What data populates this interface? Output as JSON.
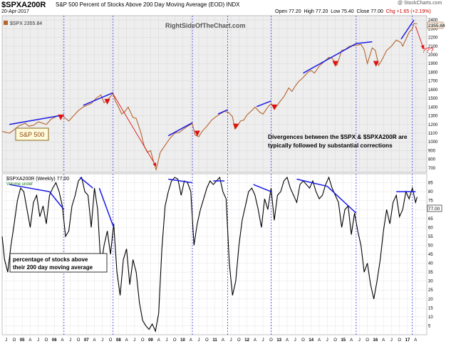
{
  "header": {
    "ticker": "$SPXA200R",
    "description": "S&P 500 Percent of Stocks Above 200 Day Moving Average (EOD) INDX",
    "date": "20-Apr-2017",
    "brand": "@ StockCharts.com",
    "open_label": "Open",
    "open": "77.20",
    "high_label": "High",
    "high": "77.20",
    "low_label": "Low",
    "low": "75.40",
    "close_label": "Close",
    "close": "77.00",
    "change": "Chg +1.65 (+2.19%)"
  },
  "chart_data": [
    {
      "type": "line",
      "panel": "top",
      "legend": "$SPX 2355.84",
      "watermark": "RightSideOfTheChart.com",
      "label_box": "S&P 500",
      "last_value_label": "2355.84",
      "annotation_line1": "Divergences between the $SPX & $SPXA200R are",
      "annotation_line2": "typically followed by substantial corrections",
      "question_marks": "???",
      "ylim": [
        650,
        2450
      ],
      "y_ticks": [
        700,
        800,
        900,
        1000,
        1100,
        1200,
        1300,
        1400,
        1500,
        1600,
        1700,
        1800,
        1900,
        2000,
        2100,
        2200,
        2300,
        2400
      ],
      "xlim": [
        2004.375,
        2017.6
      ],
      "series": [
        {
          "name": "$SPX",
          "color": "#b5652f",
          "x": [
            2004.375,
            2004.5,
            2004.6,
            2004.75,
            2004.9,
            2005.0,
            2005.1,
            2005.2,
            2005.35,
            2005.5,
            2005.6,
            2005.75,
            2005.9,
            2006.0,
            2006.1,
            2006.2,
            2006.35,
            2006.45,
            2006.6,
            2006.75,
            2006.9,
            2007.0,
            2007.15,
            2007.3,
            2007.45,
            2007.55,
            2007.62,
            2007.75,
            2007.83,
            2007.9,
            2008.0,
            2008.1,
            2008.2,
            2008.3,
            2008.45,
            2008.55,
            2008.7,
            2008.8,
            2008.9,
            2009.0,
            2009.1,
            2009.17,
            2009.3,
            2009.45,
            2009.6,
            2009.75,
            2009.9,
            2010.0,
            2010.15,
            2010.3,
            2010.38,
            2010.5,
            2010.6,
            2010.75,
            2010.9,
            2011.0,
            2011.15,
            2011.3,
            2011.42,
            2011.55,
            2011.62,
            2011.7,
            2011.8,
            2011.9,
            2012.0,
            2012.15,
            2012.25,
            2012.4,
            2012.5,
            2012.65,
            2012.75,
            2012.87,
            2013.0,
            2013.15,
            2013.3,
            2013.4,
            2013.5,
            2013.6,
            2013.75,
            2013.9,
            2014.0,
            2014.1,
            2014.25,
            2014.4,
            2014.55,
            2014.65,
            2014.8,
            2014.95,
            2015.05,
            2015.2,
            2015.4,
            2015.55,
            2015.65,
            2015.75,
            2015.9,
            2016.0,
            2016.1,
            2016.2,
            2016.35,
            2016.5,
            2016.65,
            2016.8,
            2016.85,
            2016.95,
            2017.05,
            2017.15,
            2017.2,
            2017.3
          ],
          "values": [
            1120,
            1110,
            1100,
            1140,
            1185,
            1200,
            1215,
            1180,
            1190,
            1230,
            1220,
            1200,
            1260,
            1280,
            1300,
            1310,
            1270,
            1240,
            1300,
            1360,
            1400,
            1420,
            1440,
            1500,
            1540,
            1450,
            1470,
            1520,
            1560,
            1470,
            1400,
            1320,
            1350,
            1400,
            1280,
            1270,
            1100,
            950,
            880,
            900,
            760,
            680,
            880,
            960,
            1040,
            1100,
            1110,
            1140,
            1180,
            1210,
            1080,
            1060,
            1120,
            1180,
            1250,
            1280,
            1320,
            1350,
            1340,
            1290,
            1150,
            1180,
            1240,
            1250,
            1310,
            1360,
            1400,
            1340,
            1320,
            1400,
            1440,
            1380,
            1450,
            1520,
            1620,
            1580,
            1640,
            1690,
            1740,
            1800,
            1820,
            1790,
            1870,
            1920,
            1970,
            1960,
            1880,
            2050,
            2060,
            2100,
            2110,
            2120,
            2060,
            1900,
            2080,
            2050,
            1880,
            1940,
            2050,
            2100,
            2170,
            2140,
            2100,
            2180,
            2260,
            2300,
            2360,
            2355.84
          ]
        }
      ],
      "trendlines": [
        {
          "x": [
            2004.6,
            2006.3
          ],
          "y": [
            1200,
            1310
          ]
        },
        {
          "x": [
            2006.9,
            2007.83
          ],
          "y": [
            1420,
            1565
          ]
        },
        {
          "x": [
            2009.55,
            2010.3
          ],
          "y": [
            1070,
            1220
          ]
        },
        {
          "x": [
            2011.1,
            2011.4
          ],
          "y": [
            1320,
            1370
          ]
        },
        {
          "x": [
            2012.3,
            2012.75
          ],
          "y": [
            1405,
            1470
          ]
        },
        {
          "x": [
            2013.75,
            2015.4
          ],
          "y": [
            1790,
            2130
          ]
        },
        {
          "x": [
            2015.4,
            2015.9
          ],
          "y": [
            2130,
            2150
          ]
        },
        {
          "x": [
            2016.8,
            2017.2
          ],
          "y": [
            2180,
            2400
          ]
        }
      ],
      "vertical_markers": [
        2006.3,
        2007.83,
        2010.3,
        2011.4,
        2012.75,
        2015.4,
        2017.15
      ],
      "down_arrows": [
        {
          "x": 2006.2,
          "y": 1265
        },
        {
          "x": 2007.65,
          "y": 1445
        },
        {
          "x": 2010.45,
          "y": 1080
        },
        {
          "x": 2011.65,
          "y": 1160
        },
        {
          "x": 2012.85,
          "y": 1380
        },
        {
          "x": 2014.75,
          "y": 1880
        },
        {
          "x": 2016.02,
          "y": 1880
        }
      ],
      "crash_path": {
        "x": [
          2007.83,
          2009.17
        ],
        "y": [
          1550,
          720
        ]
      },
      "projection_path": {
        "x": [
          2017.25,
          2017.5
        ],
        "y": [
          2330,
          2070
        ]
      }
    },
    {
      "type": "line",
      "panel": "bottom",
      "legend": "$SPXA200R (Weekly) 77.00",
      "legend_volume": "Volume undef",
      "last_value_label": "77.00",
      "note_line1": "percentage of stocks above",
      "note_line2": "their 200 day moving average",
      "ylim": [
        0,
        90
      ],
      "y_ticks": [
        5,
        10,
        15,
        20,
        25,
        30,
        35,
        40,
        45,
        50,
        55,
        60,
        65,
        70,
        75,
        80,
        85
      ],
      "xlim": [
        2004.375,
        2017.6
      ],
      "x_tick_labels": [
        "J",
        "O",
        "05",
        "A",
        "J",
        "O",
        "06",
        "A",
        "J",
        "O",
        "07",
        "A",
        "J",
        "O",
        "08",
        "A",
        "J",
        "O",
        "09",
        "A",
        "J",
        "O",
        "10",
        "A",
        "J",
        "O",
        "11",
        "A",
        "J",
        "O",
        "12",
        "A",
        "J",
        "O",
        "13",
        "A",
        "J",
        "O",
        "14",
        "A",
        "J",
        "O",
        "15",
        "A",
        "J",
        "O",
        "16",
        "A",
        "J",
        "O",
        "17",
        "A"
      ],
      "series": [
        {
          "name": "$SPXA200R",
          "color": "#000000",
          "x": [
            2004.375,
            2004.45,
            2004.55,
            2004.65,
            2004.75,
            2004.85,
            2004.95,
            2005.05,
            2005.15,
            2005.25,
            2005.35,
            2005.45,
            2005.55,
            2005.65,
            2005.75,
            2005.85,
            2005.95,
            2006.05,
            2006.15,
            2006.25,
            2006.35,
            2006.45,
            2006.55,
            2006.65,
            2006.75,
            2006.85,
            2006.95,
            2007.05,
            2007.15,
            2007.25,
            2007.35,
            2007.45,
            2007.55,
            2007.65,
            2007.75,
            2007.85,
            2007.95,
            2008.05,
            2008.15,
            2008.25,
            2008.35,
            2008.45,
            2008.55,
            2008.65,
            2008.75,
            2008.85,
            2008.95,
            2009.05,
            2009.15,
            2009.25,
            2009.35,
            2009.45,
            2009.55,
            2009.65,
            2009.75,
            2009.85,
            2009.95,
            2010.05,
            2010.15,
            2010.25,
            2010.35,
            2010.45,
            2010.55,
            2010.65,
            2010.75,
            2010.85,
            2010.95,
            2011.05,
            2011.15,
            2011.25,
            2011.35,
            2011.45,
            2011.55,
            2011.65,
            2011.75,
            2011.85,
            2011.95,
            2012.05,
            2012.15,
            2012.25,
            2012.35,
            2012.45,
            2012.55,
            2012.65,
            2012.75,
            2012.85,
            2012.95,
            2013.05,
            2013.15,
            2013.25,
            2013.35,
            2013.45,
            2013.55,
            2013.65,
            2013.75,
            2013.85,
            2013.95,
            2014.05,
            2014.15,
            2014.25,
            2014.35,
            2014.45,
            2014.55,
            2014.65,
            2014.75,
            2014.85,
            2014.95,
            2015.05,
            2015.15,
            2015.25,
            2015.35,
            2015.45,
            2015.55,
            2015.65,
            2015.75,
            2015.85,
            2015.95,
            2016.05,
            2016.15,
            2016.25,
            2016.35,
            2016.45,
            2016.55,
            2016.65,
            2016.75,
            2016.85,
            2016.95,
            2017.05,
            2017.15,
            2017.25,
            2017.3
          ],
          "values": [
            55,
            42,
            35,
            50,
            62,
            75,
            82,
            80,
            70,
            60,
            74,
            78,
            66,
            72,
            62,
            78,
            82,
            85,
            80,
            72,
            55,
            58,
            72,
            78,
            86,
            88,
            80,
            78,
            60,
            82,
            70,
            38,
            50,
            58,
            45,
            62,
            35,
            22,
            42,
            48,
            28,
            42,
            35,
            18,
            8,
            5,
            3,
            6,
            2,
            12,
            48,
            72,
            80,
            86,
            88,
            87,
            78,
            86,
            85,
            80,
            50,
            62,
            70,
            76,
            82,
            86,
            84,
            86,
            88,
            80,
            76,
            40,
            22,
            30,
            50,
            64,
            72,
            80,
            82,
            78,
            70,
            60,
            76,
            70,
            82,
            64,
            78,
            80,
            86,
            88,
            82,
            78,
            74,
            84,
            86,
            84,
            82,
            86,
            80,
            76,
            78,
            84,
            88,
            82,
            78,
            74,
            60,
            70,
            72,
            56,
            68,
            58,
            50,
            35,
            40,
            28,
            20,
            30,
            42,
            58,
            70,
            62,
            74,
            78,
            66,
            70,
            80,
            76,
            82,
            74,
            77
          ]
        }
      ],
      "trendlines": [
        {
          "x": [
            2004.6,
            2005.85
          ],
          "y": [
            84,
            80
          ]
        },
        {
          "x": [
            2005.85,
            2006.3
          ],
          "y": [
            80,
            70
          ]
        },
        {
          "x": [
            2006.8,
            2007.2
          ],
          "y": [
            88,
            82
          ]
        },
        {
          "x": [
            2007.4,
            2007.85
          ],
          "y": [
            82,
            60
          ]
        },
        {
          "x": [
            2009.55,
            2010.3
          ],
          "y": [
            87,
            85
          ]
        },
        {
          "x": [
            2010.95,
            2011.3
          ],
          "y": [
            86,
            86
          ]
        },
        {
          "x": [
            2012.2,
            2012.75
          ],
          "y": [
            84,
            80
          ]
        },
        {
          "x": [
            2013.55,
            2014.5
          ],
          "y": [
            87,
            83
          ]
        },
        {
          "x": [
            2014.5,
            2015.4
          ],
          "y": [
            83,
            68
          ]
        },
        {
          "x": [
            2016.65,
            2017.25
          ],
          "y": [
            80,
            80
          ]
        }
      ],
      "vertical_markers": [
        2006.3,
        2007.83,
        2010.3,
        2011.4,
        2012.75,
        2015.4,
        2017.15
      ]
    }
  ]
}
